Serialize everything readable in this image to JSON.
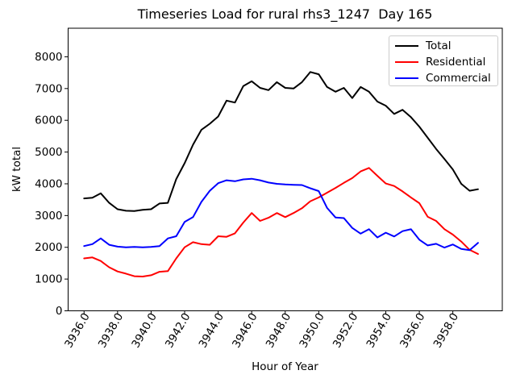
{
  "chart_data": {
    "type": "line",
    "title": "Timeseries Load for rural rhs3_1247  Day 165",
    "xlabel": "Hour of Year",
    "ylabel": "kW total",
    "grid": false,
    "legend_loc": "upper right",
    "xlim": [
      3935.05,
      3960.95
    ],
    "ylim": [
      0,
      8900
    ],
    "x_tick_values": [
      3936,
      3938,
      3940,
      3942,
      3944,
      3946,
      3948,
      3950,
      3952,
      3954,
      3956,
      3958
    ],
    "x_tick_labels": [
      "3936.0",
      "3938.0",
      "3940.0",
      "3942.0",
      "3944.0",
      "3946.0",
      "3948.0",
      "3950.0",
      "3952.0",
      "3954.0",
      "3956.0",
      "3958.0"
    ],
    "y_tick_values": [
      0,
      1000,
      2000,
      3000,
      4000,
      5000,
      6000,
      7000,
      8000
    ],
    "y_tick_labels": [
      "0",
      "1000",
      "2000",
      "3000",
      "4000",
      "5000",
      "6000",
      "7000",
      "8000"
    ],
    "x": [
      3936.0,
      3936.5,
      3937.0,
      3937.5,
      3938.0,
      3938.5,
      3939.0,
      3939.5,
      3940.0,
      3940.5,
      3941.0,
      3941.5,
      3942.0,
      3942.5,
      3943.0,
      3943.5,
      3944.0,
      3944.5,
      3945.0,
      3945.5,
      3946.0,
      3946.5,
      3947.0,
      3947.5,
      3948.0,
      3948.5,
      3949.0,
      3949.5,
      3950.0,
      3950.5,
      3951.0,
      3951.5,
      3952.0,
      3952.5,
      3953.0,
      3953.5,
      3954.0,
      3954.5,
      3955.0,
      3955.5,
      3956.0,
      3956.5,
      3957.0,
      3957.5,
      3958.0,
      3958.5,
      3959.0,
      3959.5
    ],
    "series": [
      {
        "name": "Total",
        "color": "#000000",
        "values": [
          3540,
          3560,
          3700,
          3400,
          3200,
          3150,
          3140,
          3180,
          3200,
          3380,
          3400,
          4150,
          4650,
          5230,
          5700,
          5890,
          6120,
          6620,
          6560,
          7080,
          7230,
          7020,
          6950,
          7200,
          7020,
          7000,
          7200,
          7520,
          7450,
          7050,
          6900,
          7020,
          6700,
          7050,
          6900,
          6590,
          6460,
          6200,
          6330,
          6100,
          5800,
          5450,
          5100,
          4780,
          4450,
          4000,
          3780,
          3830
        ]
      },
      {
        "name": "Residential",
        "color": "#ff0000",
        "values": [
          1650,
          1680,
          1570,
          1370,
          1240,
          1170,
          1090,
          1080,
          1120,
          1230,
          1250,
          1650,
          2000,
          2160,
          2100,
          2080,
          2350,
          2330,
          2440,
          2780,
          3080,
          2830,
          2930,
          3080,
          2950,
          3080,
          3230,
          3450,
          3570,
          3720,
          3870,
          4030,
          4180,
          4390,
          4500,
          4250,
          4010,
          3930,
          3760,
          3570,
          3390,
          2960,
          2830,
          2570,
          2400,
          2180,
          1920,
          1790
        ]
      },
      {
        "name": "Commercial",
        "color": "#0000ff",
        "values": [
          2040,
          2100,
          2280,
          2080,
          2020,
          2000,
          2010,
          2000,
          2010,
          2040,
          2280,
          2350,
          2800,
          2950,
          3430,
          3780,
          4020,
          4110,
          4080,
          4140,
          4160,
          4110,
          4040,
          4000,
          3980,
          3970,
          3960,
          3860,
          3770,
          3240,
          2940,
          2920,
          2610,
          2430,
          2570,
          2310,
          2460,
          2340,
          2510,
          2570,
          2240,
          2060,
          2110,
          1990,
          2090,
          1950,
          1910,
          2140
        ]
      }
    ]
  }
}
